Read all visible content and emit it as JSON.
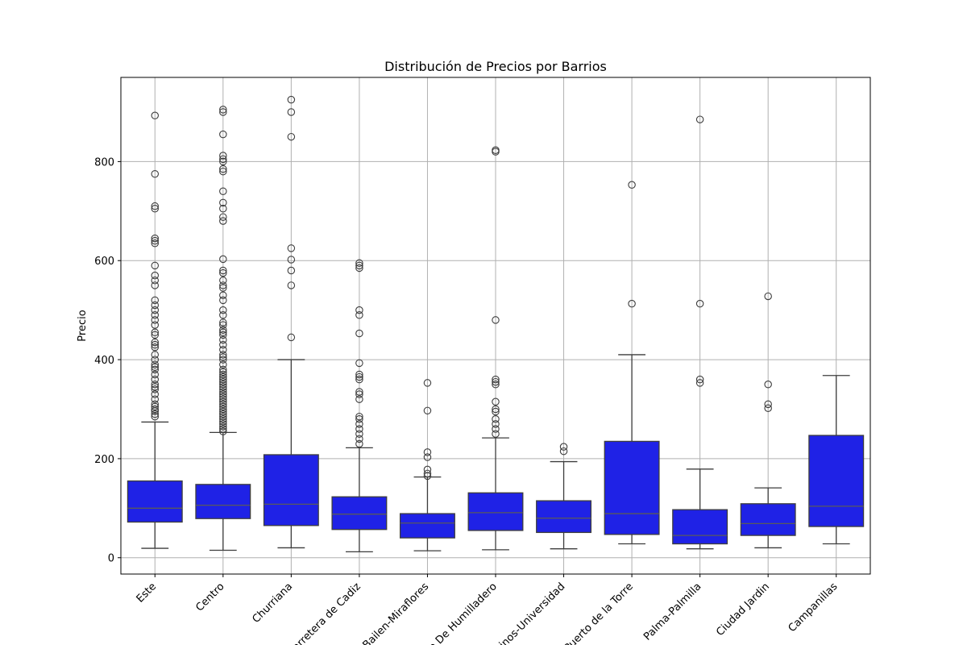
{
  "chart_data": {
    "type": "box",
    "title": "Distribución de Precios por Barrios",
    "xlabel": "",
    "ylabel": "Precio",
    "ylim": [
      -33,
      970
    ],
    "yticks": [
      0,
      200,
      400,
      600,
      800
    ],
    "grid": true,
    "box_color": "#1f22e6",
    "categories": [
      "Este",
      "Centro",
      "Churriana",
      "Carretera de Cadiz",
      "Bailen-Miraflores",
      "Puerto De Humilladero",
      "Teatinos-Universidad",
      "Puerto de la Torre",
      "Palma-Palmilla",
      "Ciudad Jardin",
      "Campanillas"
    ],
    "boxes": [
      {
        "category": "Este",
        "min": 19,
        "q1": 72,
        "median": 100,
        "q3": 155,
        "max": 274,
        "outliers": [
          285,
          290,
          296,
          300,
          305,
          310,
          320,
          330,
          340,
          345,
          350,
          360,
          370,
          380,
          385,
          390,
          400,
          410,
          425,
          430,
          435,
          450,
          455,
          470,
          480,
          490,
          500,
          510,
          520,
          550,
          560,
          570,
          590,
          635,
          640,
          645,
          705,
          710,
          775,
          893
        ]
      },
      {
        "category": "Centro",
        "min": 15,
        "q1": 79,
        "median": 106,
        "q3": 148,
        "max": 253,
        "outliers": [
          255,
          260,
          265,
          270,
          275,
          280,
          285,
          290,
          295,
          300,
          305,
          310,
          315,
          320,
          325,
          330,
          335,
          340,
          345,
          350,
          355,
          360,
          365,
          370,
          375,
          380,
          390,
          400,
          405,
          410,
          420,
          430,
          440,
          450,
          455,
          460,
          470,
          475,
          490,
          500,
          520,
          530,
          545,
          550,
          560,
          575,
          580,
          603,
          680,
          688,
          705,
          717,
          740,
          780,
          785,
          800,
          805,
          812,
          855,
          900,
          905
        ]
      },
      {
        "category": "Churriana",
        "min": 20,
        "q1": 65,
        "median": 108,
        "q3": 208,
        "max": 400,
        "outliers": [
          445,
          550,
          580,
          602,
          625,
          850,
          900,
          925
        ]
      },
      {
        "category": "Carretera de Cadiz",
        "min": 12,
        "q1": 57,
        "median": 88,
        "q3": 123,
        "max": 222,
        "outliers": [
          230,
          240,
          250,
          260,
          270,
          280,
          285,
          320,
          330,
          335,
          360,
          365,
          370,
          393,
          453,
          490,
          500,
          585,
          590,
          595
        ]
      },
      {
        "category": "Bailen-Miraflores",
        "min": 14,
        "q1": 40,
        "median": 70,
        "q3": 89,
        "max": 163,
        "outliers": [
          165,
          170,
          178,
          203,
          213,
          297,
          353
        ]
      },
      {
        "category": "Puerto De Humilladero",
        "min": 16,
        "q1": 55,
        "median": 91,
        "q3": 131,
        "max": 242,
        "outliers": [
          250,
          260,
          270,
          280,
          295,
          300,
          315,
          350,
          355,
          360,
          480,
          820,
          823
        ]
      },
      {
        "category": "Teatinos-Universidad",
        "min": 18,
        "q1": 51,
        "median": 80,
        "q3": 115,
        "max": 194,
        "outliers": [
          215,
          224
        ]
      },
      {
        "category": "Puerto de la Torre",
        "min": 28,
        "q1": 47,
        "median": 89,
        "q3": 235,
        "max": 410,
        "outliers": [
          513,
          753
        ]
      },
      {
        "category": "Palma-Palmilla",
        "min": 18,
        "q1": 28,
        "median": 45,
        "q3": 97,
        "max": 179,
        "outliers": [
          353,
          360,
          513,
          885
        ]
      },
      {
        "category": "Ciudad Jardin",
        "min": 20,
        "q1": 45,
        "median": 69,
        "q3": 109,
        "max": 141,
        "outliers": [
          302,
          310,
          350,
          528
        ]
      },
      {
        "category": "Campanillas",
        "min": 28,
        "q1": 63,
        "median": 104,
        "q3": 247,
        "max": 368,
        "outliers": []
      }
    ]
  }
}
